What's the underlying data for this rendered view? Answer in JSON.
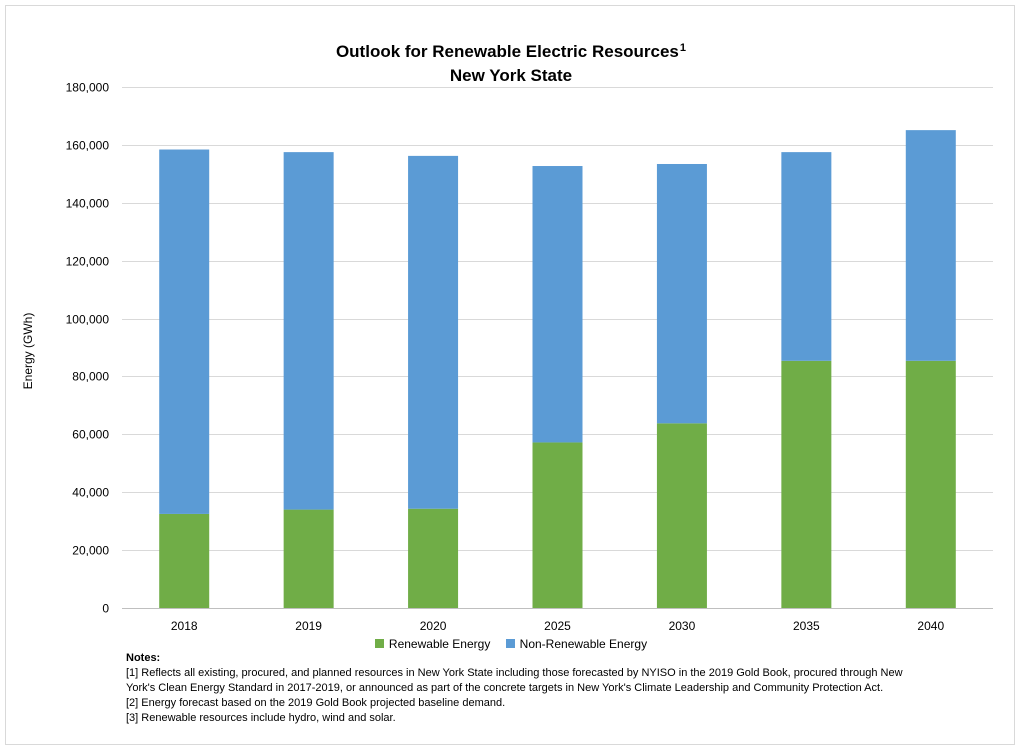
{
  "title": {
    "line1": "Outlook for Renewable Electric Resources",
    "line1_sup": "1",
    "line2": "New York State"
  },
  "chart_data": {
    "type": "bar",
    "stacked": true,
    "categories": [
      "2018",
      "2019",
      "2020",
      "2025",
      "2030",
      "2035",
      "2040"
    ],
    "series": [
      {
        "name": "Renewable Energy",
        "color": "#70ad47",
        "values": [
          32500,
          34000,
          34300,
          57200,
          63800,
          85400,
          85400
        ]
      },
      {
        "name": "Non-Renewable Energy",
        "color": "#5b9bd5",
        "values": [
          125900,
          123500,
          121900,
          95500,
          89600,
          72100,
          79700
        ]
      }
    ],
    "ylabel": "Energy (GWh)",
    "xlabel": "",
    "ylim": [
      0,
      180000
    ],
    "yticks": [
      0,
      20000,
      40000,
      60000,
      80000,
      100000,
      120000,
      140000,
      160000,
      180000
    ],
    "ytick_labels": [
      "0",
      "20,000",
      "40,000",
      "60,000",
      "80,000",
      "100,000",
      "120,000",
      "140,000",
      "160,000",
      "180,000"
    ],
    "grid": true,
    "legend_position": "bottom"
  },
  "notes": {
    "heading": "Notes:",
    "lines": [
      "[1] Reflects all existing, procured, and planned resources in New York State including those forecasted by NYISO in the 2019 Gold Book, procured through New",
      "York's Clean Energy Standard in 2017-2019, or announced as part of the concrete targets in New York's Climate Leadership and Community Protection Act.",
      "[2] Energy forecast based on the 2019 Gold Book projected baseline demand.",
      "[3] Renewable resources include hydro, wind and solar."
    ]
  }
}
